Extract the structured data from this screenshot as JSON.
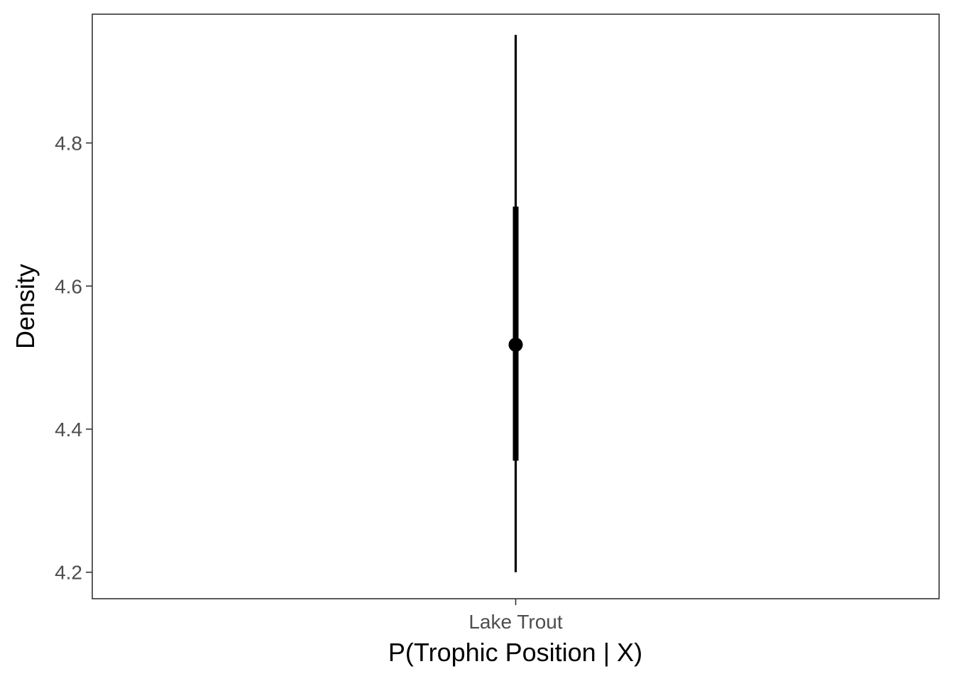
{
  "chart_data": {
    "type": "pointrange",
    "title": "",
    "xlabel": "P(Trophic Position | X)",
    "ylabel": "Density",
    "categories": [
      "Lake Trout"
    ],
    "ylim": [
      4.163,
      4.98
    ],
    "yticks": [
      "4.2",
      "4.4",
      "4.6",
      "4.8"
    ],
    "grid": false,
    "legend": "none",
    "points": [
      {
        "category": "Lake Trout",
        "median": 4.518,
        "inner_interval": [
          4.356,
          4.711
        ],
        "outer_interval": [
          4.2,
          4.951
        ]
      }
    ],
    "colors": {
      "mark": "#000000",
      "panel_border": "#333333",
      "tick_text": "#4d4d4d"
    }
  }
}
